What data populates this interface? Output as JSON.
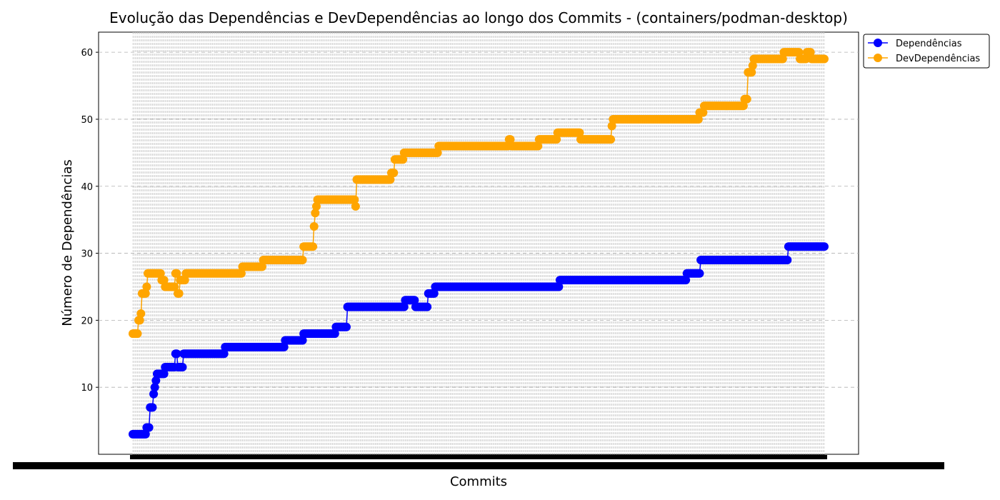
{
  "chart_data": {
    "type": "line",
    "title": "Evolução das Dependências e DevDependências ao longo dos Commits - (containers/podman-desktop)",
    "xlabel": "Commits",
    "ylabel": "Número de Dependências",
    "ylim": [
      0,
      63
    ],
    "yticks": [
      10,
      20,
      30,
      40,
      50,
      60
    ],
    "grid": "y-dashed",
    "legend": "upper-right-outside",
    "commit_count": 600,
    "series": [
      {
        "name": "Dependências",
        "color": "#0000ff",
        "steps": [
          [
            0,
            3
          ],
          [
            12,
            4
          ],
          [
            15,
            7
          ],
          [
            18,
            9
          ],
          [
            19,
            10
          ],
          [
            20,
            11
          ],
          [
            21,
            12
          ],
          [
            28,
            13
          ],
          [
            37,
            15
          ],
          [
            39,
            13
          ],
          [
            44,
            15
          ],
          [
            80,
            16
          ],
          [
            132,
            17
          ],
          [
            148,
            18
          ],
          [
            176,
            19
          ],
          [
            186,
            22
          ],
          [
            236,
            23
          ],
          [
            245,
            22
          ],
          [
            256,
            24
          ],
          [
            262,
            25
          ],
          [
            370,
            26
          ],
          [
            480,
            27
          ],
          [
            492,
            29
          ],
          [
            568,
            31
          ],
          [
            600,
            31
          ]
        ]
      },
      {
        "name": "DevDependências",
        "color": "#ffa500",
        "steps": [
          [
            0,
            18
          ],
          [
            5,
            20
          ],
          [
            7,
            21
          ],
          [
            8,
            24
          ],
          [
            12,
            25
          ],
          [
            13,
            27
          ],
          [
            25,
            26
          ],
          [
            28,
            25
          ],
          [
            37,
            27
          ],
          [
            39,
            24
          ],
          [
            41,
            26
          ],
          [
            46,
            27
          ],
          [
            95,
            28
          ],
          [
            113,
            29
          ],
          [
            148,
            31
          ],
          [
            157,
            34
          ],
          [
            158,
            36
          ],
          [
            159,
            37
          ],
          [
            160,
            38
          ],
          [
            193,
            37
          ],
          [
            194,
            41
          ],
          [
            224,
            42
          ],
          [
            227,
            44
          ],
          [
            235,
            45
          ],
          [
            265,
            46
          ],
          [
            326,
            47
          ],
          [
            328,
            46
          ],
          [
            352,
            47
          ],
          [
            368,
            48
          ],
          [
            388,
            47
          ],
          [
            415,
            49
          ],
          [
            416,
            50
          ],
          [
            491,
            51
          ],
          [
            495,
            52
          ],
          [
            530,
            53
          ],
          [
            533,
            57
          ],
          [
            537,
            58
          ],
          [
            538,
            59
          ],
          [
            564,
            60
          ],
          [
            578,
            59
          ],
          [
            584,
            60
          ],
          [
            588,
            59
          ],
          [
            600,
            59
          ]
        ]
      }
    ]
  }
}
